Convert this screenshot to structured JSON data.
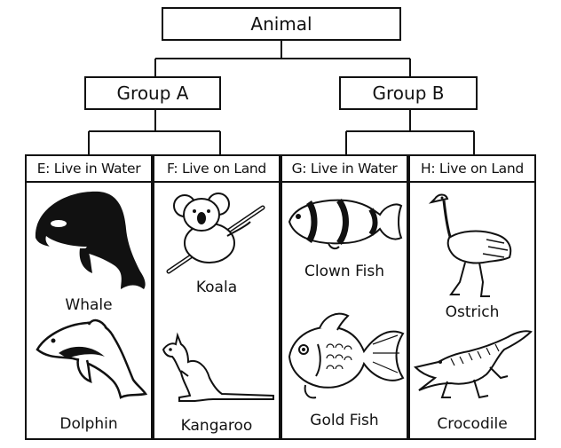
{
  "root": "Animal",
  "groups": [
    {
      "label": "Group A",
      "columns": [
        {
          "header": "E: Live in Water",
          "animals": [
            "Whale",
            "Dolphin"
          ]
        },
        {
          "header": "F: Live on Land",
          "animals": [
            "Koala",
            "Kangaroo"
          ]
        }
      ]
    },
    {
      "label": "Group B",
      "columns": [
        {
          "header": "G: Live in Water",
          "animals": [
            "Clown Fish",
            "Gold Fish"
          ]
        },
        {
          "header": "H: Live on Land",
          "animals": [
            "Ostrich",
            "Crocodile"
          ]
        }
      ]
    }
  ]
}
